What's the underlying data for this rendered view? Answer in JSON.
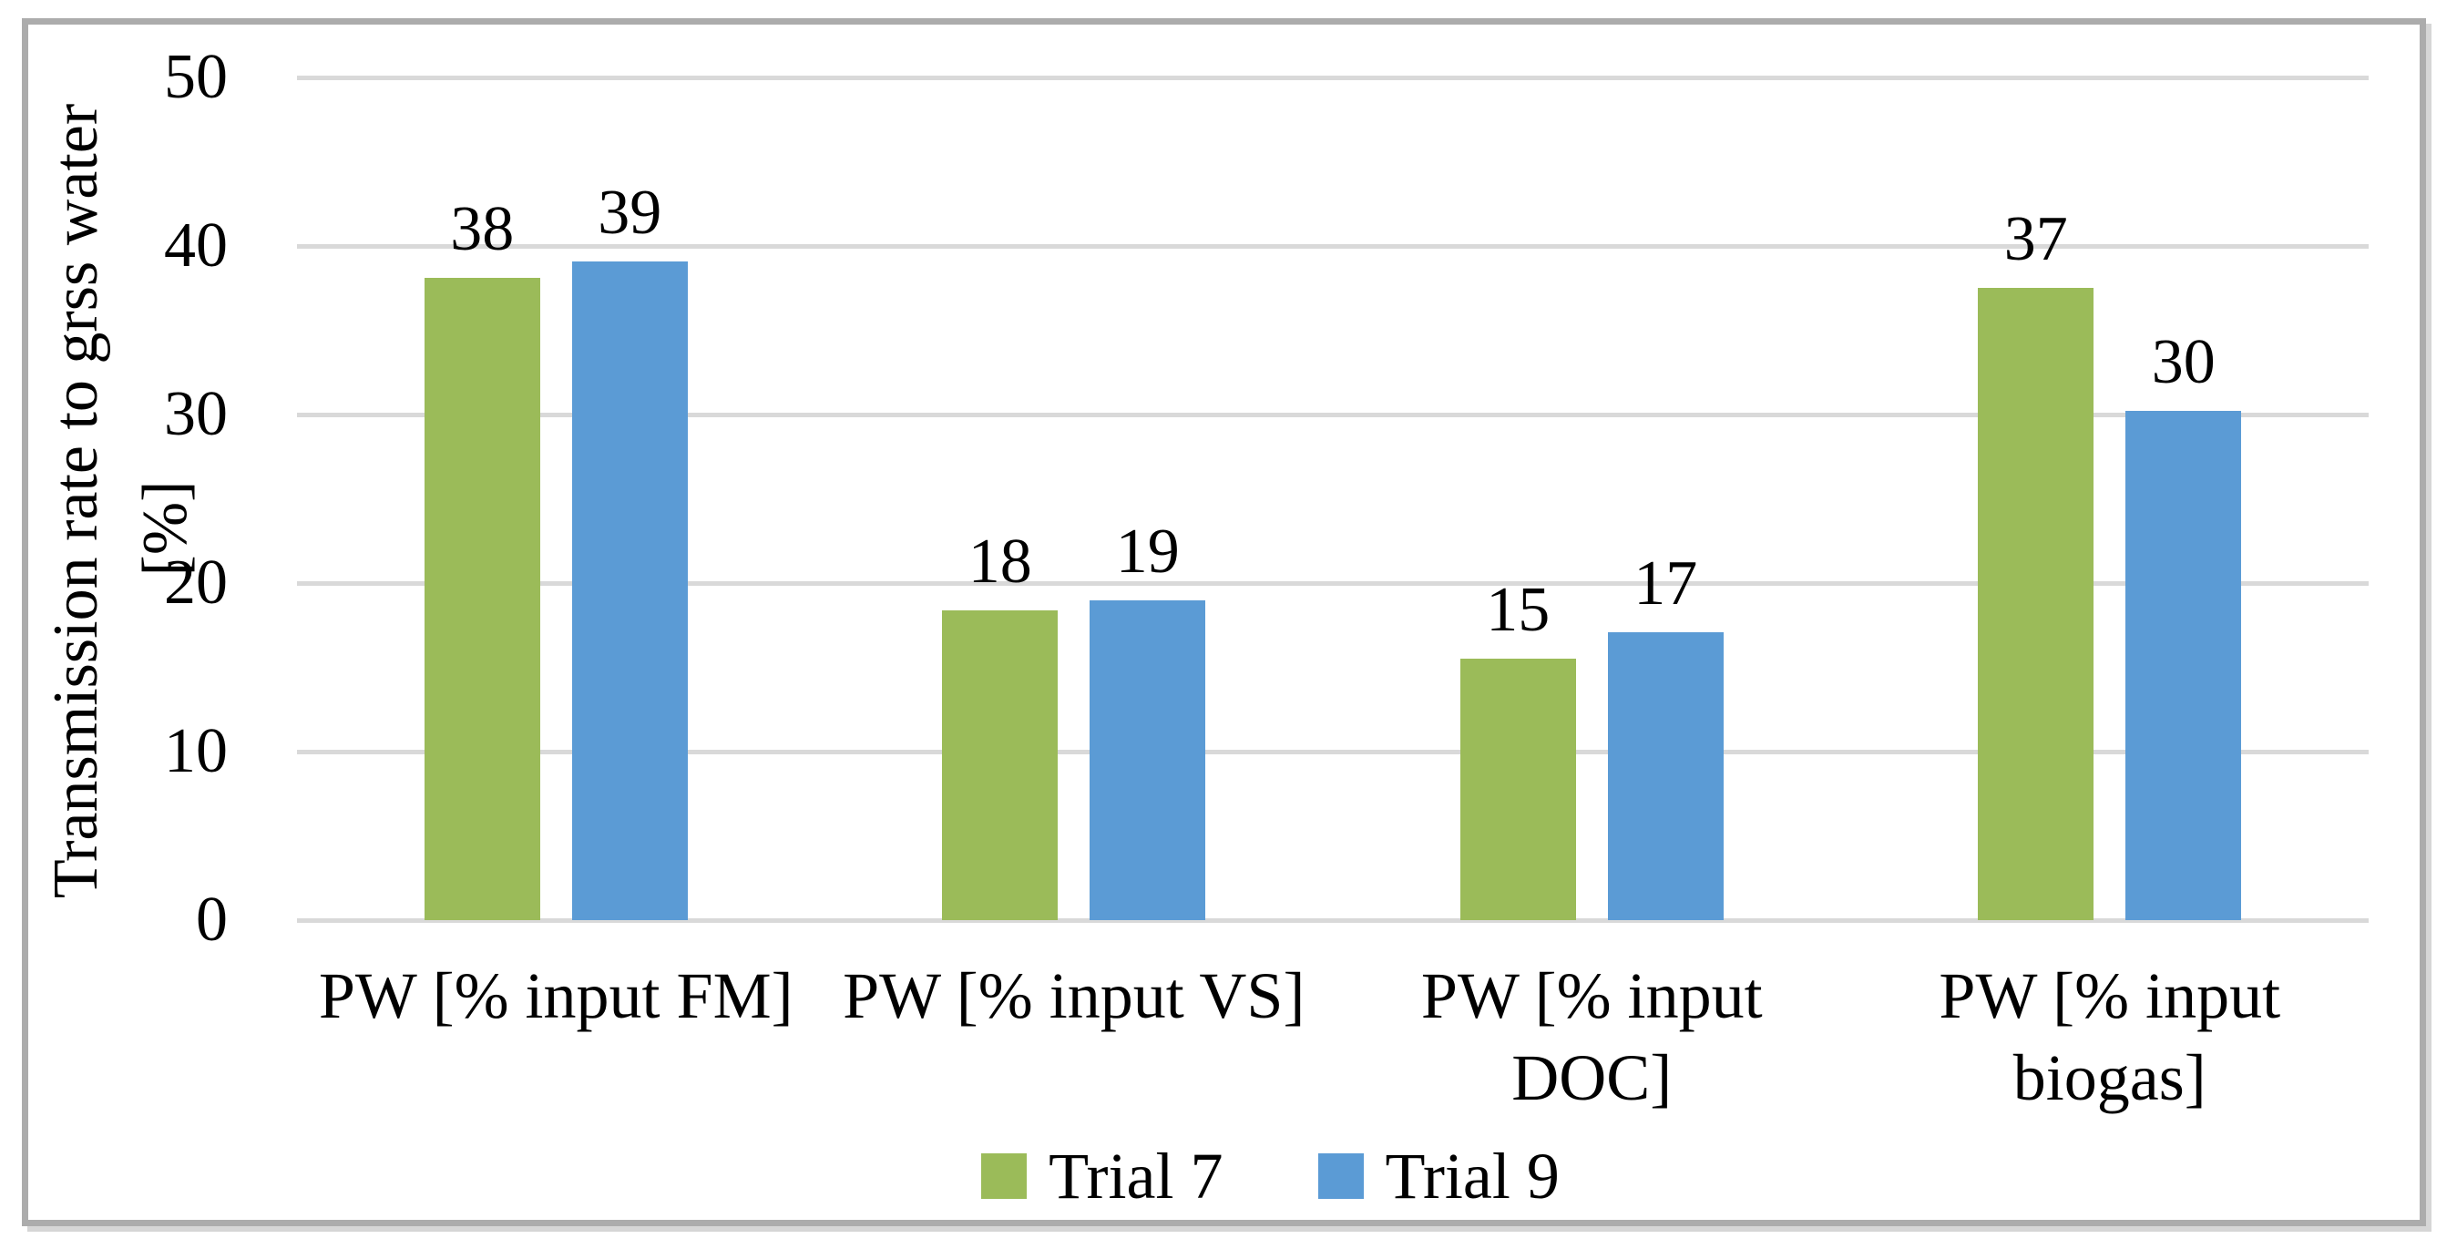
{
  "chart_data": {
    "type": "bar",
    "title": "",
    "ylabel_line1": "Transmission rate to grss water",
    "ylabel_line2": "[%]",
    "categories": [
      "PW [% input FM]",
      "PW [% input VS]",
      "PW [% input\nDOC]",
      "PW [% input\nbiogas]"
    ],
    "series": [
      {
        "name": "Trial 7",
        "color": "#9BBB59",
        "values": [
          38.1,
          18.4,
          15.5,
          37.5
        ],
        "labels": [
          "38",
          "18",
          "15",
          "37"
        ]
      },
      {
        "name": "Trial 9",
        "color": "#5B9BD5",
        "values": [
          39.1,
          19.0,
          17.1,
          30.2
        ],
        "labels": [
          "39",
          "19",
          "17",
          "30"
        ]
      }
    ],
    "y_axis": {
      "min": 0,
      "max": 50,
      "tick_step": 10,
      "ticks": [
        "0",
        "10",
        "20",
        "30",
        "40",
        "50"
      ]
    },
    "grid": true,
    "legend_position": "bottom"
  },
  "colors": {
    "bar_green": "#9BBB59",
    "bar_blue": "#5B9BD5",
    "gridline": "#D9D9D9",
    "frame_border": "#ACACAC",
    "frame_shadow": "#D6D6D6",
    "background": "#FFFFFF",
    "text": "#000000"
  }
}
